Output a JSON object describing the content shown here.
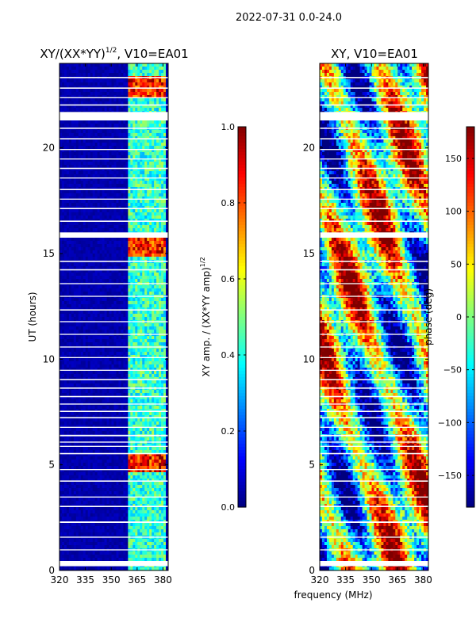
{
  "suptitle": "2022-07-31 0.0-24.0",
  "xlabel_shared": "frequency (MHz)",
  "colors": {
    "jet": [
      "#00007f",
      "#0000ff",
      "#007fff",
      "#00ffff",
      "#7fff7f",
      "#ffff00",
      "#ff7f00",
      "#ff0000",
      "#7f0000"
    ],
    "gap": "#ffffff",
    "axes": "#000000"
  },
  "chart_data": [
    {
      "type": "heatmap",
      "title_main": "XY/(XX*YY)",
      "title_exp": "1/2",
      "title_suffix": ", V10=EA01",
      "xlabel": "",
      "ylabel": "UT (hours)",
      "xlim": [
        320,
        383
      ],
      "ylim": [
        0,
        24
      ],
      "xticks": [
        "320",
        "335",
        "350",
        "365",
        "380"
      ],
      "xtick_values": [
        320,
        335,
        350,
        365,
        380
      ],
      "yticks": [
        "0",
        "5",
        "10",
        "15",
        "20"
      ],
      "ytick_values": [
        0,
        5,
        10,
        15,
        20
      ],
      "pattern": "amplitude",
      "bright_channel_ranges_mhz": [
        [
          360,
          366
        ],
        [
          366,
          371
        ],
        [
          371,
          376
        ],
        [
          376,
          382
        ]
      ],
      "high_amp_hours": [
        [
          4.6,
          5.6
        ],
        [
          14.8,
          15.7
        ],
        [
          22.4,
          23.4
        ]
      ],
      "colorbar": {
        "label_main": "XY amp. / (XX*YY amp)",
        "label_exp": "1/2",
        "range": [
          0,
          1
        ],
        "ticks": [
          "0.0",
          "0.2",
          "0.4",
          "0.6",
          "0.8",
          "1.0"
        ],
        "tick_values": [
          0,
          0.2,
          0.4,
          0.6,
          0.8,
          1.0
        ]
      }
    },
    {
      "type": "heatmap",
      "title": "XY, V10=EA01",
      "xlabel": "frequency (MHz)",
      "ylabel": "",
      "xlim": [
        320,
        383
      ],
      "ylim": [
        0,
        24
      ],
      "xticks": [
        "320",
        "335",
        "350",
        "365",
        "380"
      ],
      "xtick_values": [
        320,
        335,
        350,
        365,
        380
      ],
      "yticks": [
        "0",
        "5",
        "10",
        "15",
        "20"
      ],
      "ytick_values": [
        0,
        5,
        10,
        15,
        20
      ],
      "pattern": "phase",
      "colorbar": {
        "label": "phase (deg)",
        "range": [
          -180,
          180
        ],
        "ticks": [
          "−150",
          "−100",
          "−50",
          "0",
          "50",
          "100",
          "150"
        ],
        "tick_values": [
          -150,
          -100,
          -50,
          0,
          50,
          100,
          150
        ]
      }
    }
  ],
  "flagged_hours": [
    [
      0.2,
      0.45
    ],
    [
      0.95,
      1.0
    ],
    [
      1.55,
      1.6
    ],
    [
      2.25,
      2.32
    ],
    [
      3.0,
      3.06
    ],
    [
      3.45,
      3.5
    ],
    [
      4.2,
      4.26
    ],
    [
      4.75,
      4.8
    ],
    [
      5.5,
      5.56
    ],
    [
      5.85,
      5.9
    ],
    [
      6.05,
      6.1
    ],
    [
      6.35,
      6.42
    ],
    [
      6.75,
      6.8
    ],
    [
      7.2,
      7.26
    ],
    [
      7.5,
      7.56
    ],
    [
      7.85,
      7.9
    ],
    [
      8.2,
      8.26
    ],
    [
      8.6,
      8.66
    ],
    [
      9.0,
      9.06
    ],
    [
      9.45,
      9.5
    ],
    [
      10.05,
      10.1
    ],
    [
      10.55,
      10.6
    ],
    [
      11.15,
      11.2
    ],
    [
      11.75,
      11.8
    ],
    [
      12.3,
      12.36
    ],
    [
      12.95,
      13.0
    ],
    [
      13.55,
      13.6
    ],
    [
      14.2,
      14.26
    ],
    [
      14.6,
      14.66
    ],
    [
      15.75,
      16.0
    ],
    [
      16.5,
      16.56
    ],
    [
      17.1,
      17.16
    ],
    [
      17.55,
      17.6
    ],
    [
      18.0,
      18.06
    ],
    [
      18.55,
      18.6
    ],
    [
      19.0,
      19.06
    ],
    [
      19.45,
      19.5
    ],
    [
      19.9,
      19.95
    ],
    [
      20.4,
      20.46
    ],
    [
      20.9,
      20.96
    ],
    [
      21.3,
      21.7
    ],
    [
      22.0,
      22.06
    ],
    [
      22.35,
      22.4
    ],
    [
      22.8,
      22.86
    ],
    [
      23.3,
      23.36
    ]
  ]
}
